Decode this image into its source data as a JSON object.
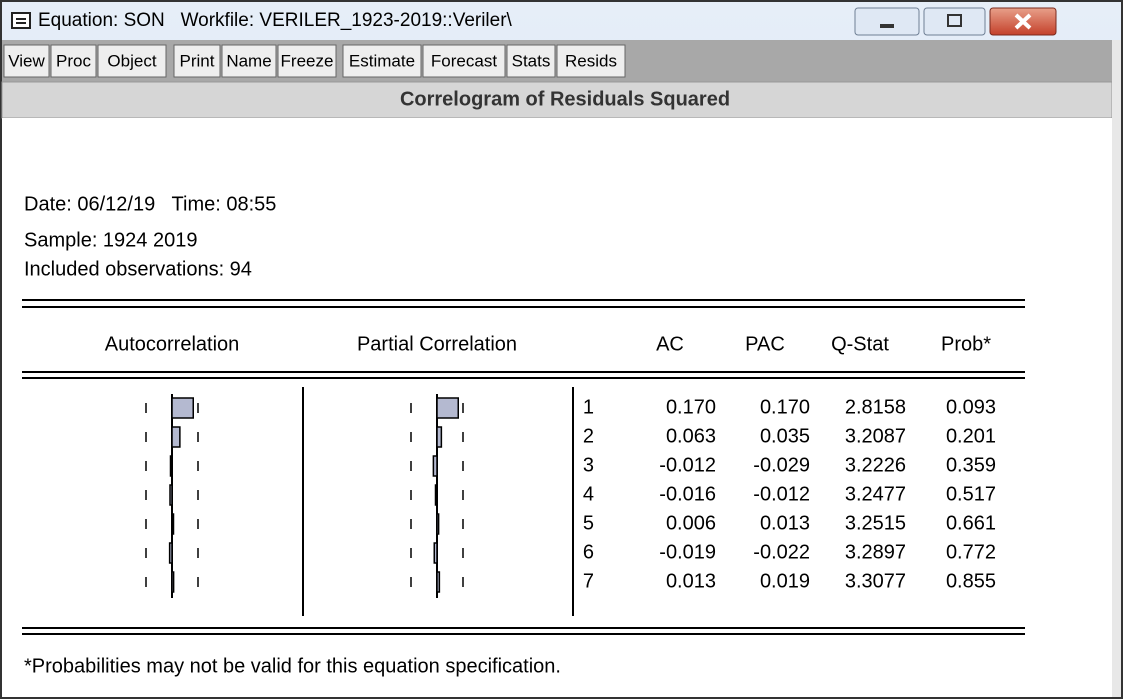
{
  "window": {
    "title": "Equation: SON   Workfile: VERILER_1923-2019::Veriler\\"
  },
  "toolbar": [
    "View",
    "Proc",
    "Object",
    "Print",
    "Name",
    "Freeze",
    "Estimate",
    "Forecast",
    "Stats",
    "Resids"
  ],
  "header": "Correlogram of Residuals Squared",
  "info": [
    "Date: 06/12/19   Time: 08:55",
    "Sample: 1924 2019",
    "Included observations: 94"
  ],
  "table": {
    "columns": [
      "Autocorrelation",
      "Partial Correlation",
      "AC",
      "PAC",
      "Q-Stat",
      "Prob*"
    ],
    "rows": [
      [
        1,
        {
          "value": 0.17,
          "label": "0.170"
        },
        {
          "value": 0.17,
          "label": "0.170"
        },
        2.8158,
        0.093
      ],
      [
        2,
        0.063,
        0.035,
        3.2087,
        0.201
      ],
      [
        3,
        -0.012,
        -0.029,
        3.2226,
        0.359
      ],
      [
        4,
        -0.016,
        -0.012,
        3.2477,
        0.517
      ],
      [
        5,
        0.006,
        0.013,
        3.2515,
        0.661
      ],
      [
        6,
        -0.019,
        -0.022,
        3.2897,
        0.772
      ],
      [
        7,
        0.013,
        0.019,
        3.3077,
        0.855
      ]
    ],
    "footnote": "*Probabilities may not be valid for this equation specification."
  }
}
